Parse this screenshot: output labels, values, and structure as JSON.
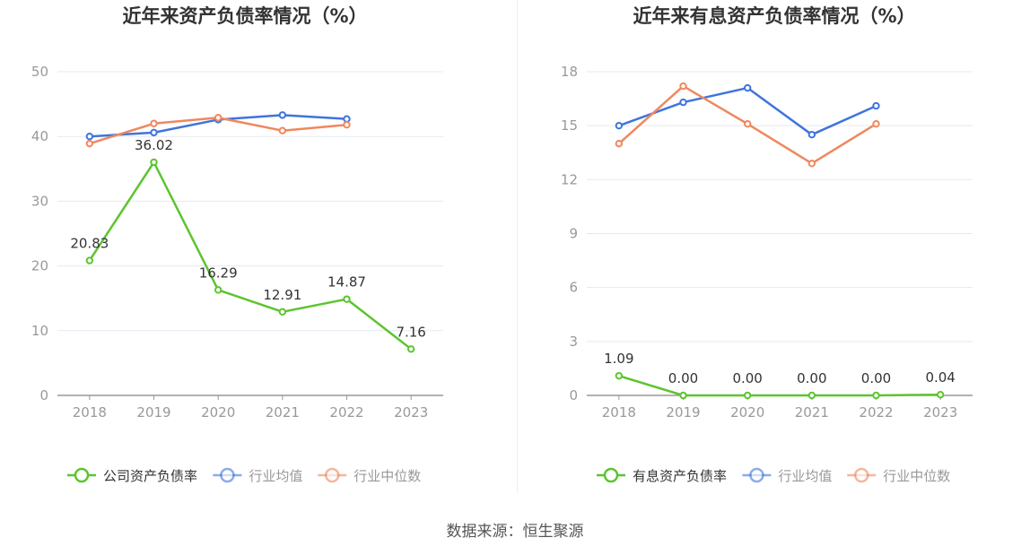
{
  "source_text": "数据来源：恒生聚源",
  "colors": {
    "company": "#5dc430",
    "average": "#3f74dc",
    "median": "#f0875e",
    "grid": "#e6e9f2",
    "axis": "#999999",
    "tick_text": "#999999",
    "title": "#333333",
    "label_text": "#333333"
  },
  "chart_data": [
    {
      "type": "line",
      "title": "近年来资产负债率情况（%）",
      "categories": [
        "2018",
        "2019",
        "2020",
        "2021",
        "2022",
        "2023"
      ],
      "ylim": [
        0,
        50
      ],
      "yticks": [
        0,
        10,
        20,
        30,
        40,
        50
      ],
      "grid": true,
      "legend_position": "bottom",
      "series": [
        {
          "name": "公司资产负债率",
          "color_key": "company",
          "values": [
            20.83,
            36.02,
            16.29,
            12.91,
            14.87,
            7.16
          ],
          "labels": [
            "20.83",
            "36.02",
            "16.29",
            "12.91",
            "14.87",
            "7.16"
          ]
        },
        {
          "name": "行业均值",
          "color_key": "average",
          "values": [
            40.0,
            40.6,
            42.6,
            43.3,
            42.7,
            null
          ]
        },
        {
          "name": "行业中位数",
          "color_key": "median",
          "values": [
            38.9,
            42.0,
            42.9,
            40.9,
            41.8,
            null
          ]
        }
      ]
    },
    {
      "type": "line",
      "title": "近年来有息资产负债率情况（%）",
      "categories": [
        "2018",
        "2019",
        "2020",
        "2021",
        "2022",
        "2023"
      ],
      "ylim": [
        0,
        18
      ],
      "yticks": [
        0,
        3,
        6,
        9,
        12,
        15,
        18
      ],
      "grid": true,
      "legend_position": "bottom",
      "series": [
        {
          "name": "有息资产负债率",
          "color_key": "company",
          "values": [
            1.09,
            0.0,
            0.0,
            0.0,
            0.0,
            0.04
          ],
          "labels": [
            "1.09",
            "0.00",
            "0.00",
            "0.00",
            "0.00",
            "0.04"
          ]
        },
        {
          "name": "行业均值",
          "color_key": "average",
          "values": [
            15.0,
            16.3,
            17.1,
            14.5,
            16.1,
            null
          ]
        },
        {
          "name": "行业中位数",
          "color_key": "median",
          "values": [
            14.0,
            17.2,
            15.1,
            12.9,
            15.1,
            null
          ]
        }
      ]
    }
  ]
}
